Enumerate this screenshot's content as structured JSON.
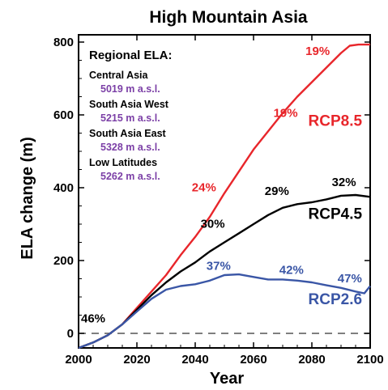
{
  "chart_data": {
    "type": "line",
    "title": "High Mountain Asia",
    "xlabel": "Year",
    "ylabel": "ELA change (m)",
    "xlim": [
      2000,
      2100
    ],
    "ylim": [
      -40,
      820
    ],
    "xticks": [
      2000,
      2020,
      2040,
      2060,
      2080,
      2100
    ],
    "yticks": [
      0,
      200,
      400,
      600,
      800
    ],
    "zero_line": "dashed",
    "regional": {
      "heading": "Regional ELA:",
      "items": [
        {
          "name": "Central Asia",
          "value": "5019 m a.s.l."
        },
        {
          "name": "South Asia West",
          "value": "5215 m a.s.l."
        },
        {
          "name": "South Asia East",
          "value": "5328 m a.s.l."
        },
        {
          "name": "Low Latitudes",
          "value": "5262 m a.s.l."
        }
      ]
    },
    "series": [
      {
        "name": "RCP8.5",
        "color": "#e8262b",
        "points": [
          [
            2000,
            -40
          ],
          [
            2005,
            -25
          ],
          [
            2010,
            -5
          ],
          [
            2015,
            25
          ],
          [
            2020,
            70
          ],
          [
            2025,
            115
          ],
          [
            2030,
            160
          ],
          [
            2035,
            215
          ],
          [
            2040,
            265
          ],
          [
            2045,
            320
          ],
          [
            2050,
            385
          ],
          [
            2055,
            445
          ],
          [
            2060,
            505
          ],
          [
            2065,
            555
          ],
          [
            2070,
            605
          ],
          [
            2075,
            650
          ],
          [
            2080,
            690
          ],
          [
            2085,
            730
          ],
          [
            2090,
            770
          ],
          [
            2093,
            790
          ],
          [
            2096,
            793
          ],
          [
            2100,
            793
          ]
        ],
        "annotations": [
          {
            "text": "24%",
            "x": 2043,
            "y": 390
          },
          {
            "text": "19%",
            "x": 2071,
            "y": 595
          },
          {
            "text": "19%",
            "x": 2082,
            "y": 765
          }
        ]
      },
      {
        "name": "RCP4.5",
        "color": "#000000",
        "points": [
          [
            2000,
            -40
          ],
          [
            2005,
            -25
          ],
          [
            2010,
            -5
          ],
          [
            2015,
            25
          ],
          [
            2020,
            65
          ],
          [
            2025,
            105
          ],
          [
            2030,
            140
          ],
          [
            2035,
            170
          ],
          [
            2040,
            195
          ],
          [
            2045,
            225
          ],
          [
            2050,
            250
          ],
          [
            2055,
            275
          ],
          [
            2060,
            300
          ],
          [
            2065,
            325
          ],
          [
            2070,
            345
          ],
          [
            2075,
            355
          ],
          [
            2080,
            360
          ],
          [
            2085,
            368
          ],
          [
            2090,
            378
          ],
          [
            2095,
            380
          ],
          [
            2100,
            375
          ]
        ],
        "annotations": [
          {
            "text": "30%",
            "x": 2046,
            "y": 290
          },
          {
            "text": "29%",
            "x": 2068,
            "y": 380
          },
          {
            "text": "32%",
            "x": 2091,
            "y": 405
          }
        ]
      },
      {
        "name": "RCP2.6",
        "color": "#3a56a6",
        "points": [
          [
            2000,
            -40
          ],
          [
            2005,
            -25
          ],
          [
            2010,
            -5
          ],
          [
            2015,
            25
          ],
          [
            2020,
            60
          ],
          [
            2025,
            95
          ],
          [
            2030,
            120
          ],
          [
            2035,
            130
          ],
          [
            2040,
            135
          ],
          [
            2045,
            145
          ],
          [
            2050,
            160
          ],
          [
            2055,
            162
          ],
          [
            2060,
            155
          ],
          [
            2065,
            148
          ],
          [
            2070,
            148
          ],
          [
            2075,
            145
          ],
          [
            2080,
            140
          ],
          [
            2085,
            132
          ],
          [
            2090,
            125
          ],
          [
            2095,
            115
          ],
          [
            2098,
            110
          ],
          [
            2100,
            130
          ]
        ],
        "annotations": [
          {
            "text": "37%",
            "x": 2048,
            "y": 175
          },
          {
            "text": "42%",
            "x": 2073,
            "y": 163
          },
          {
            "text": "47%",
            "x": 2093,
            "y": 140
          }
        ]
      }
    ],
    "series_labels": [
      {
        "text": "RCP8.5",
        "series": 0,
        "x": 2088,
        "y": 570
      },
      {
        "text": "RCP4.5",
        "series": 1,
        "x": 2088,
        "y": 315
      },
      {
        "text": "RCP2.6",
        "series": 2,
        "x": 2088,
        "y": 80
      }
    ],
    "extra_annotations": [
      {
        "text": "46%",
        "x": 2005,
        "y": 30,
        "color": "#000000"
      }
    ]
  }
}
